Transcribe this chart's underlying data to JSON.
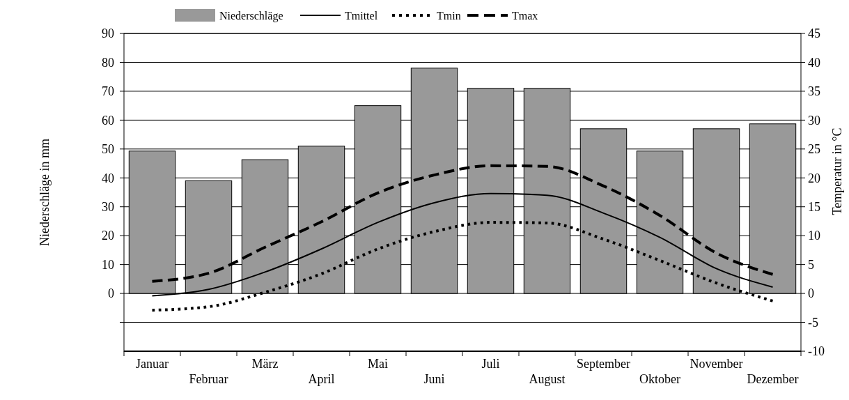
{
  "chart_data": {
    "type": "bar",
    "xlabel": null,
    "ylabel": "Niederschläge in mm",
    "y2label": "Temperatur in °C",
    "categories": [
      "Januar",
      "Februar",
      "März",
      "April",
      "Mai",
      "Juni",
      "Juli",
      "August",
      "September",
      "Oktober",
      "November",
      "Dezember"
    ],
    "series": [
      {
        "name": "Niederschläge",
        "color": "#999999",
        "values": [
          49.3,
          39,
          46.3,
          51,
          65,
          78,
          71,
          71,
          57,
          49.3,
          57,
          58.7
        ]
      },
      {
        "name": "Tmittel",
        "type": "line",
        "axis": "y2",
        "color": "#000000",
        "line_style": "solid",
        "values": [
          -0.4,
          0.7,
          3.7,
          7.7,
          12.3,
          15.7,
          17.3,
          17.0,
          13.9,
          9.7,
          4.3,
          1.1
        ]
      },
      {
        "name": "Tmin",
        "type": "line",
        "axis": "y2",
        "color": "#000000",
        "line_style": "dotted",
        "values": [
          -2.9,
          -2.3,
          0.2,
          3.4,
          7.7,
          10.7,
          12.3,
          12.2,
          9.4,
          5.7,
          1.8,
          -1.3
        ]
      },
      {
        "name": "Tmax",
        "type": "line",
        "axis": "y2",
        "color": "#000000",
        "line_style": "dashed",
        "values": [
          2.1,
          3.5,
          8.0,
          12.4,
          17.4,
          20.5,
          22.1,
          22.0,
          18.6,
          13.5,
          7.0,
          3.3
        ]
      }
    ],
    "ylim": [
      -20,
      90
    ],
    "yticks": [
      {
        "value": -10,
        "label": null
      },
      0,
      10,
      20,
      30,
      40,
      50,
      60,
      70,
      80,
      90
    ],
    "y2lim": [
      -10,
      45
    ],
    "y2ticks": [
      -10,
      -5,
      0,
      5,
      10,
      15,
      20,
      25,
      30,
      35,
      40,
      45
    ],
    "grid": "y",
    "legend": "top"
  }
}
